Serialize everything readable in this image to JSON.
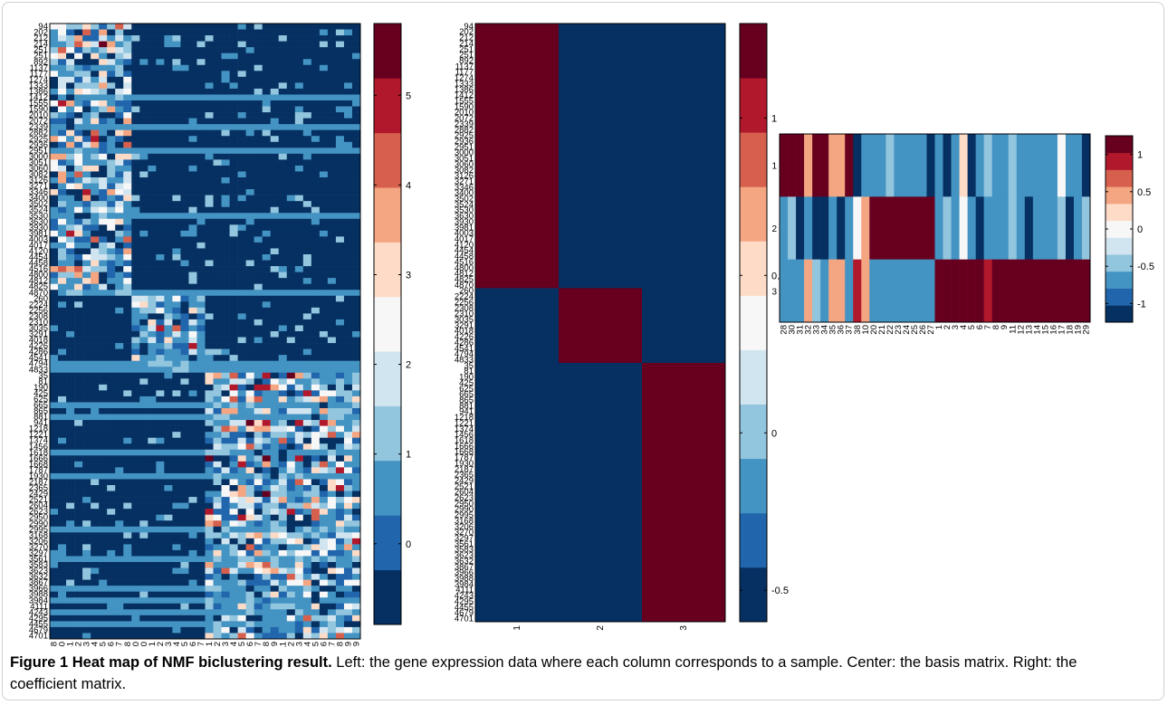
{
  "caption": {
    "title": "Figure 1 Heat map of NMF biclustering result.",
    "text": " Left: the gene expression data where each column corresponds to a sample. Center: the basis matrix. Right: the coefficient matrix."
  },
  "chart_data": [
    {
      "type": "heatmap",
      "name": "gene-expression",
      "x_labels": [
        "28",
        "30",
        "31",
        "32",
        "33",
        "34",
        "35",
        "36",
        "37",
        "38",
        "10",
        "20",
        "21",
        "22",
        "23",
        "24",
        "25",
        "26",
        "27",
        "1",
        "2",
        "3",
        "4",
        "5",
        "6",
        "7",
        "8",
        "9",
        "11",
        "12",
        "13",
        "14",
        "15",
        "16",
        "17",
        "18",
        "19",
        "29"
      ],
      "y_labels": [
        "94",
        "202",
        "212",
        "214",
        "251",
        "251",
        "892",
        "1137",
        "1177",
        "1274",
        "1333",
        "1386",
        "1412",
        "1555",
        "1590",
        "2010",
        "2072",
        "2339",
        "2882",
        "2925",
        "2936",
        "2951",
        "3000",
        "3051",
        "3060",
        "3082",
        "3126",
        "3271",
        "3346",
        "3400",
        "3502",
        "3524",
        "3530",
        "3630",
        "3930",
        "3981",
        "4003",
        "4017",
        "4120",
        "4454",
        "4458",
        "4516",
        "4800",
        "4812",
        "4825",
        "4870",
        "260",
        "2224",
        "2256",
        "2308",
        "2310",
        "3035",
        "3291",
        "4018",
        "4226",
        "4286",
        "4541",
        "4794",
        "4833",
        "35",
        "81",
        "190",
        "425",
        "625",
        "665",
        "865",
        "881",
        "941",
        "1218",
        "1221",
        "1374",
        "1456",
        "1618",
        "1666",
        "1668",
        "1787",
        "1930",
        "2187",
        "2365",
        "2429",
        "2521",
        "2604",
        "2623",
        "2950",
        "2990",
        "2995",
        "3168",
        "3206",
        "3270",
        "3297",
        "3561",
        "3583",
        "3623",
        "3632",
        "3867",
        "3966",
        "3988",
        "3984",
        "4111",
        "4243",
        "4295",
        "4455",
        "4679",
        "4701"
      ],
      "row_blocks": [
        46,
        13,
        45
      ],
      "col_blocks": [
        10,
        9,
        19
      ],
      "colorbar": {
        "min": -0.9,
        "max": 5.8,
        "ticks": [
          0,
          1,
          2,
          3,
          4,
          5
        ]
      }
    },
    {
      "type": "heatmap",
      "name": "basis-matrix",
      "x_labels": [
        "1",
        "2",
        "3"
      ],
      "y_labels_same_as": "gene-expression",
      "values_by_row_block": [
        [
          1.3,
          -0.55,
          -0.55
        ],
        [
          -0.55,
          1.3,
          -0.55
        ],
        [
          -0.55,
          -0.55,
          1.3
        ]
      ],
      "colorbar": {
        "min": -0.6,
        "max": 1.3,
        "ticks": [
          -0.5,
          0,
          0.5,
          1
        ]
      }
    },
    {
      "type": "heatmap",
      "name": "coefficient-matrix",
      "x_labels": [
        "28",
        "30",
        "31",
        "32",
        "33",
        "34",
        "35",
        "36",
        "37",
        "38",
        "10",
        "20",
        "21",
        "22",
        "23",
        "24",
        "25",
        "26",
        "27",
        "1",
        "2",
        "3",
        "4",
        "5",
        "6",
        "7",
        "8",
        "9",
        "11",
        "12",
        "13",
        "14",
        "15",
        "16",
        "17",
        "18",
        "19",
        "29"
      ],
      "y_labels": [
        "1",
        "2",
        "3"
      ],
      "values": [
        [
          1.2,
          1.2,
          1.2,
          0.5,
          1.2,
          1.2,
          0.5,
          0.5,
          1.2,
          -1.2,
          -0.75,
          -0.75,
          -0.75,
          -0.4,
          -0.75,
          -0.75,
          -0.75,
          -0.75,
          -1.2,
          -0.75,
          -1.2,
          -0.6,
          0.2,
          -1.2,
          -0.75,
          -0.4,
          -0.75,
          -0.75,
          -0.4,
          -0.75,
          -0.75,
          -0.75,
          -0.75,
          -0.75,
          0.0,
          -0.75,
          -0.6,
          -1.2
        ],
        [
          -0.75,
          -0.4,
          -1.2,
          -0.75,
          -1.2,
          -1.2,
          -0.75,
          -1.2,
          -0.75,
          0.0,
          0.5,
          1.2,
          1.2,
          1.2,
          1.2,
          1.2,
          1.2,
          1.2,
          1.2,
          -0.6,
          -0.4,
          -0.75,
          0.0,
          -0.75,
          -1.2,
          -0.6,
          -0.75,
          -0.75,
          -0.4,
          -0.75,
          -1.2,
          -0.6,
          -0.75,
          -0.75,
          -0.4,
          -1.2,
          -0.75,
          -0.4
        ],
        [
          -0.75,
          -0.75,
          -0.75,
          0.5,
          -0.4,
          -0.75,
          0.5,
          0.5,
          -0.75,
          0.8,
          0.5,
          -0.75,
          -0.75,
          -0.75,
          -0.75,
          -0.75,
          -0.75,
          -0.75,
          -0.75,
          1.2,
          1.2,
          1.2,
          1.2,
          1.2,
          1.2,
          0.9,
          1.2,
          1.2,
          1.2,
          1.2,
          1.2,
          1.2,
          1.2,
          1.2,
          1.2,
          1.2,
          1.2,
          1.2
        ]
      ],
      "colorbar": {
        "min": -1.25,
        "max": 1.25,
        "ticks": [
          -1,
          -0.5,
          0,
          0.5,
          1
        ]
      }
    }
  ]
}
